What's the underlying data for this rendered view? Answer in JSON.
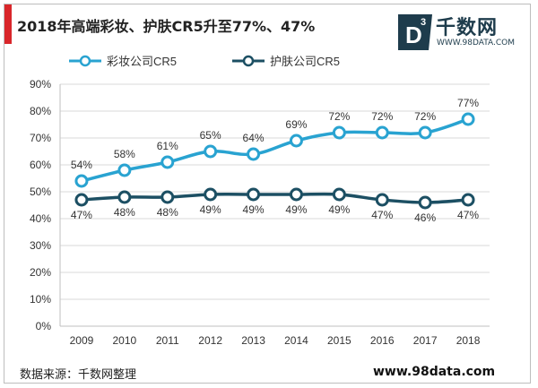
{
  "header": {
    "title": "2018年高端彩妆、护肤CR5升至77%、47%",
    "brand_name": "千数网",
    "brand_url": "WWW.98DATA.COM",
    "brand_mark": "D3"
  },
  "footer": {
    "source": "数据来源：千数网整理",
    "website": "www.98data.com"
  },
  "colors": {
    "series1": "#29a3d1",
    "series2": "#1c4f63",
    "accent": "#d9262b"
  },
  "chart_data": {
    "type": "line",
    "title": "2018年高端彩妆、护肤CR5升至77%、47%",
    "x": [
      "2009",
      "2010",
      "2011",
      "2012",
      "2013",
      "2014",
      "2015",
      "2016",
      "2017",
      "2018"
    ],
    "series": [
      {
        "name": "彩妆公司CR5",
        "values": [
          54,
          58,
          61,
          65,
          64,
          69,
          72,
          72,
          72,
          77
        ],
        "labels": [
          "54%",
          "58%",
          "61%",
          "65%",
          "64%",
          "69%",
          "72%",
          "72%",
          "72%",
          "77%"
        ],
        "color": "#29a3d1"
      },
      {
        "name": "护肤公司CR5",
        "values": [
          47,
          48,
          48,
          49,
          49,
          49,
          49,
          47,
          46,
          47
        ],
        "labels": [
          "47%",
          "48%",
          "48%",
          "49%",
          "49%",
          "49%",
          "49%",
          "47%",
          "46%",
          "47%"
        ],
        "color": "#1c4f63"
      }
    ],
    "ylim": [
      0,
      90
    ],
    "yticks": [
      0,
      10,
      20,
      30,
      40,
      50,
      60,
      70,
      80,
      90
    ],
    "ytick_labels": [
      "0%",
      "10%",
      "20%",
      "30%",
      "40%",
      "50%",
      "60%",
      "70%",
      "80%",
      "90%"
    ],
    "xlabel": "",
    "ylabel": "",
    "grid": true,
    "legend": "top-left"
  }
}
